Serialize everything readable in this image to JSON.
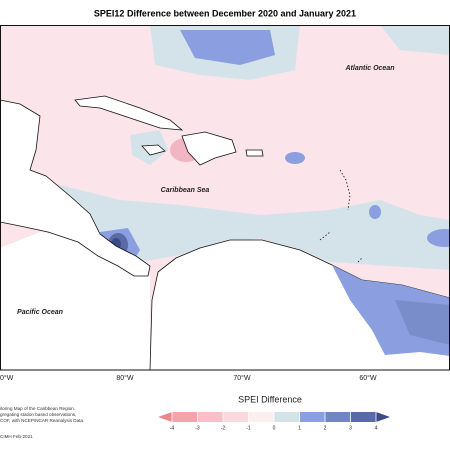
{
  "title": "SPEI12 Difference between December 2020 and January 2021",
  "map": {
    "labels": [
      "Atlantic Ocean",
      "Caribbean Sea",
      "Pacific Ocean"
    ],
    "longitudes": [
      "0°W",
      "80°W",
      "70°W",
      "60°W"
    ]
  },
  "legend": {
    "title": "SPEI Difference",
    "ticks": [
      -4,
      -3,
      -2,
      -1,
      0,
      1,
      2,
      3,
      4
    ],
    "colors": [
      "#f0858d",
      "#f4a3ab",
      "#f7c0c7",
      "#fad8dd",
      "#fdeef1",
      "#d4e3ea",
      "#8b9ee0",
      "#7286c0",
      "#5a6aa6",
      "#3d4a8a"
    ]
  },
  "notes": [
    "itoring Map of the Caribbean Region.",
    "gregating station based observations,",
    "COF, with NCEP/NCAR Reanalysis Data.",
    "CIMH Feb-2021"
  ]
}
